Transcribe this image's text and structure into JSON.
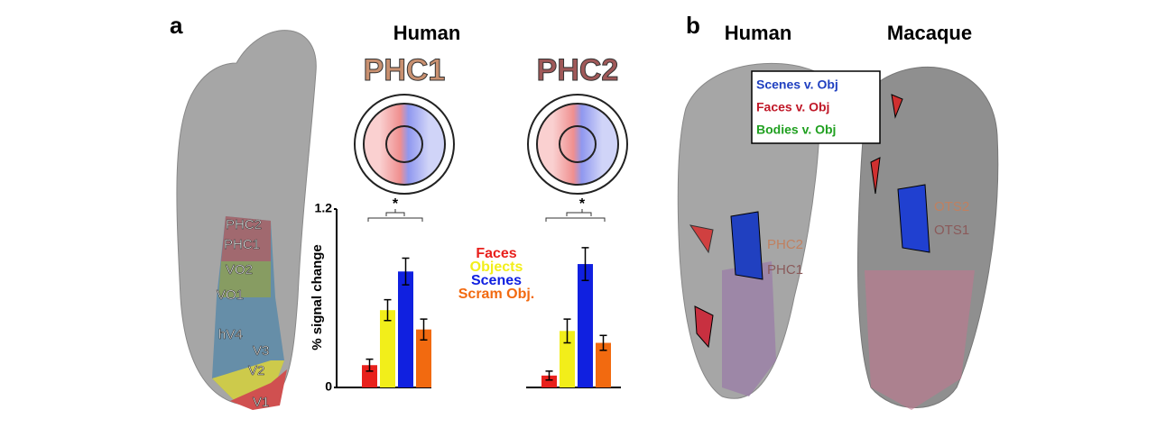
{
  "panel_a": {
    "label": "a",
    "title": "Human",
    "brain_labels": [
      "PHC2",
      "PHC1",
      "VO2",
      "VO1",
      "hV4",
      "V3",
      "V2",
      "V1"
    ]
  },
  "legend_title_y": "% signal change",
  "chart_data": [
    {
      "type": "bar",
      "title": "PHC1",
      "title_color": "#c99070",
      "categories": [
        "Faces",
        "Objects",
        "Scenes",
        "Scram Obj."
      ],
      "colors": [
        "#e8201c",
        "#f2ee1a",
        "#1020e0",
        "#f26a10"
      ],
      "values": [
        0.15,
        0.52,
        0.78,
        0.39
      ],
      "errors": [
        0.04,
        0.07,
        0.09,
        0.07
      ],
      "ylim": [
        0,
        1.2
      ],
      "yticks": [
        0,
        1.2
      ],
      "annotations": [
        "*"
      ]
    },
    {
      "type": "bar",
      "title": "PHC2",
      "title_color": "#a05858",
      "values": [
        0.08,
        0.38,
        0.83,
        0.3
      ],
      "errors": [
        0.03,
        0.08,
        0.11,
        0.05
      ],
      "ylim": [
        0,
        1.2
      ],
      "annotations": [
        "*"
      ]
    }
  ],
  "panel_b": {
    "label": "b",
    "titles": [
      "Human",
      "Macaque"
    ],
    "legend": [
      "Scenes v. Obj",
      "Faces v. Obj",
      "Bodies v. Obj"
    ],
    "legend_colors": [
      "#2040c0",
      "#c01828",
      "#20a020"
    ],
    "human_labels": [
      "PHC2",
      "PHC1"
    ],
    "macaque_labels": [
      "OTS2",
      "OTS1"
    ]
  }
}
